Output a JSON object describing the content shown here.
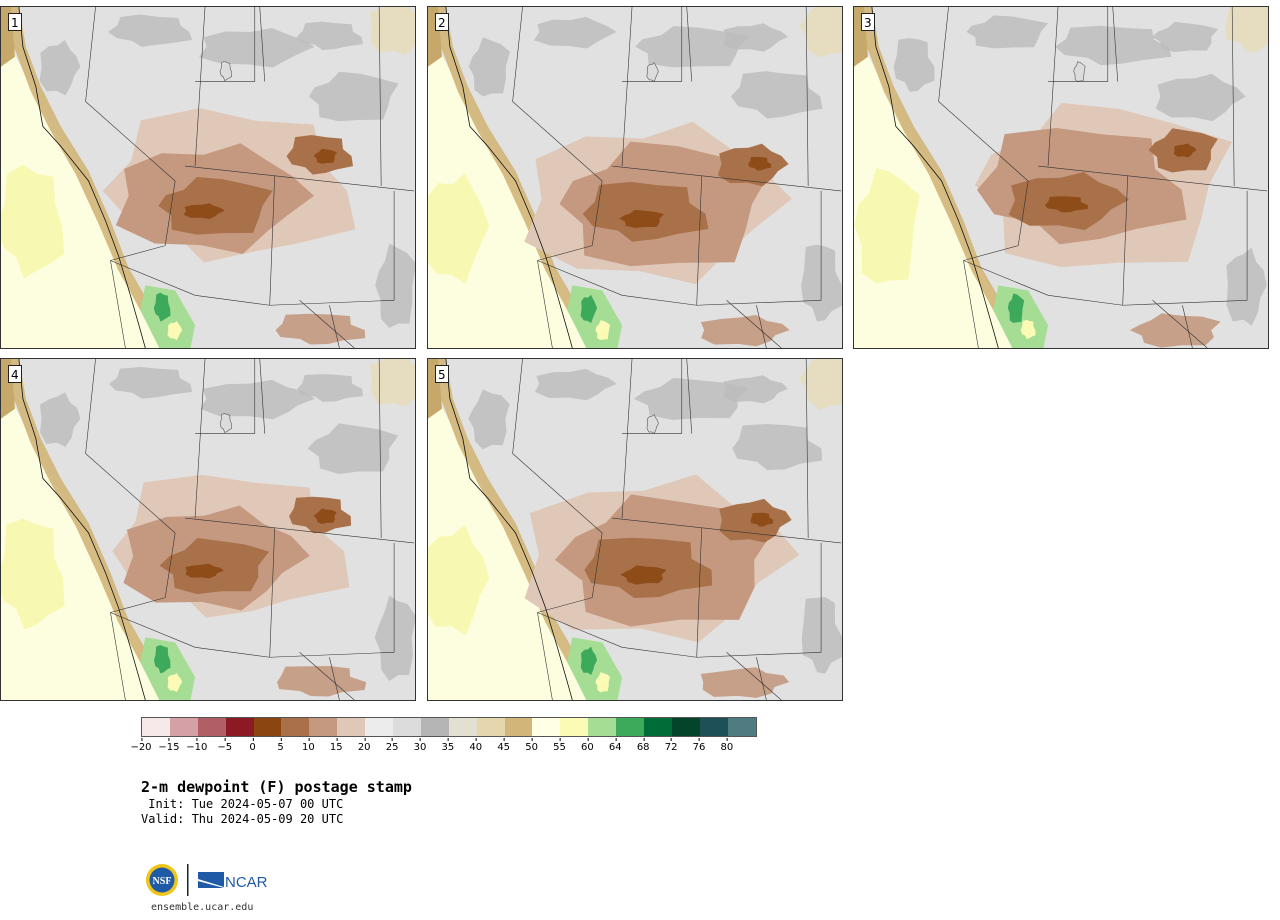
{
  "panels": [
    {
      "label": "1"
    },
    {
      "label": "2"
    },
    {
      "label": "3"
    },
    {
      "label": "4"
    },
    {
      "label": "5"
    }
  ],
  "colorbar": {
    "colors": [
      "#f7e9ea",
      "#d4a1a6",
      "#b05f66",
      "#8b1a25",
      "#8a4510",
      "#a9714a",
      "#c49980",
      "#e0c8b8",
      "#ececec",
      "#dcdcdc",
      "#b5b5b5",
      "#e2e0d0",
      "#e6d6ae",
      "#d2b578",
      "#ffffe6",
      "#fbfbb6",
      "#a6dd95",
      "#3daa5b",
      "#006c38",
      "#03442a",
      "#1d5157",
      "#4f7c80"
    ],
    "tick_labels": [
      "−20",
      "−15",
      "−10",
      "−5",
      "0",
      "5",
      "10",
      "15",
      "20",
      "25",
      "30",
      "35",
      "40",
      "45",
      "50",
      "55",
      "60",
      "64",
      "68",
      "72",
      "76",
      "80"
    ]
  },
  "title": "2-m dewpoint (F) postage stamp",
  "init": " Init: Tue 2024-05-07 00 UTC",
  "valid": "Valid: Thu 2024-05-09 20 UTC",
  "logos": {
    "left": "NSF",
    "right": "NCAR"
  },
  "website": "ensemble.ucar.edu"
}
